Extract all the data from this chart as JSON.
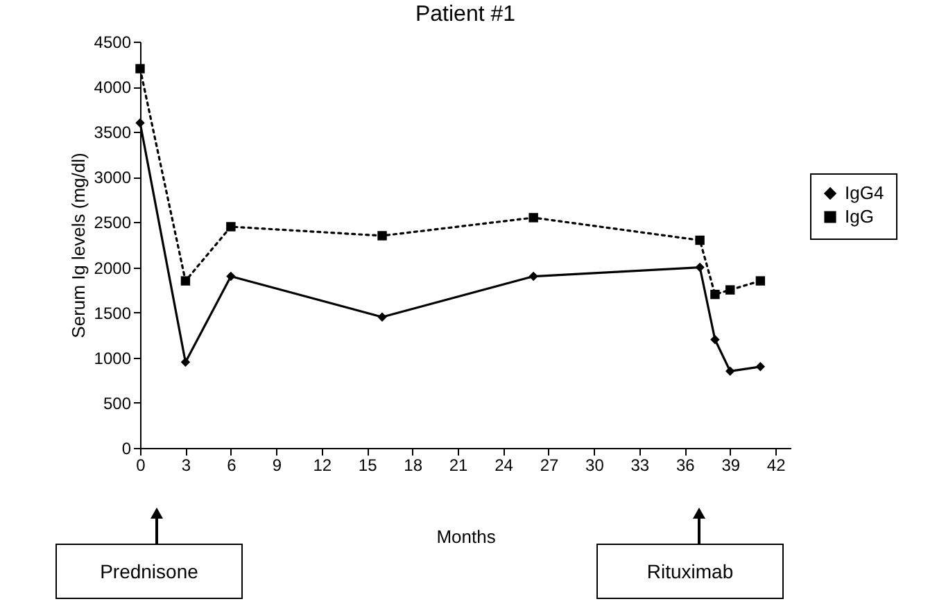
{
  "chart_data": {
    "type": "line",
    "title": "Patient #1",
    "xlabel": "Months",
    "ylabel": "Serum Ig levels (mg/dl)",
    "x": [
      0,
      3,
      6,
      16,
      26,
      37,
      38,
      39,
      41
    ],
    "series": [
      {
        "name": "IgG4",
        "color": "#000000",
        "marker": "diamond",
        "line_style": "solid",
        "values": [
          3600,
          950,
          1900,
          1450,
          1900,
          2000,
          1200,
          850,
          900
        ]
      },
      {
        "name": "IgG",
        "color": "#000000",
        "marker": "square",
        "line_style": "dotted",
        "values": [
          4200,
          1850,
          2450,
          2350,
          2550,
          2300,
          1700,
          1750,
          1850
        ]
      }
    ],
    "xlim": [
      0,
      43
    ],
    "xticks": [
      0,
      3,
      6,
      9,
      12,
      15,
      18,
      21,
      24,
      27,
      30,
      33,
      36,
      39,
      42
    ],
    "ylim": [
      0,
      4500
    ],
    "yticks": [
      0,
      500,
      1000,
      1500,
      2000,
      2500,
      3000,
      3500,
      4000,
      4500
    ],
    "grid": false,
    "legend": "right",
    "annotations": [
      "Prednisone",
      "Rituximab"
    ]
  }
}
